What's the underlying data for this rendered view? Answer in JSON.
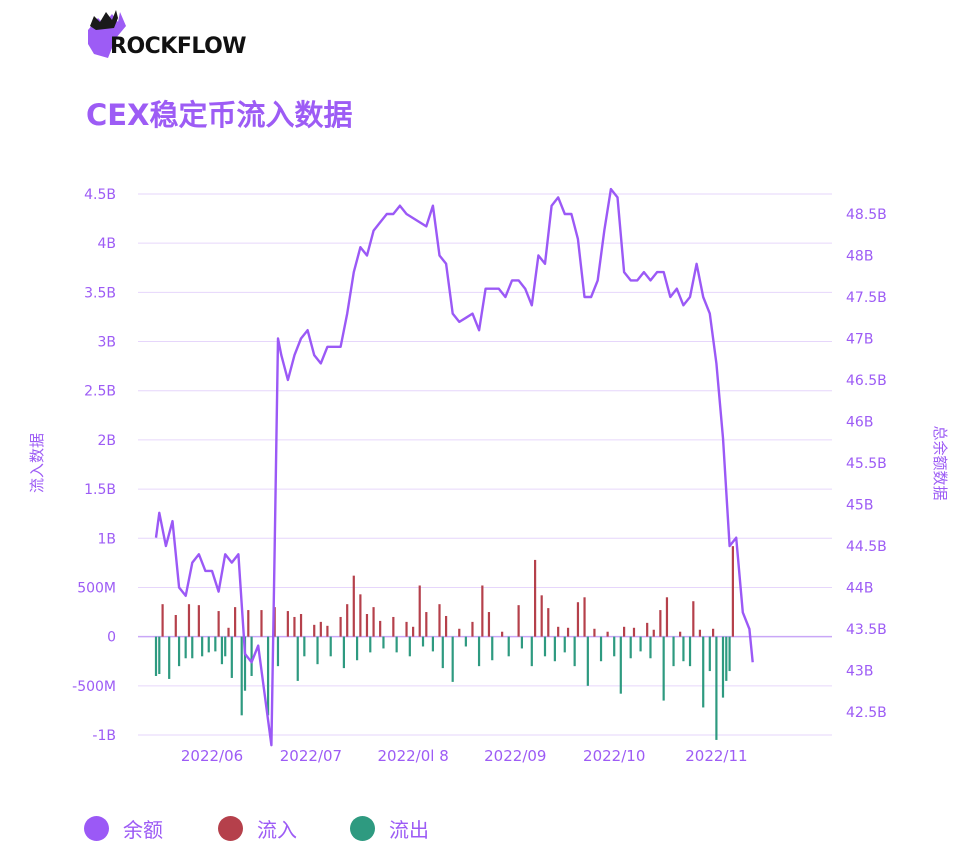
{
  "brand": {
    "name": "ROCKFLOW"
  },
  "title": "CEX稳定币流入数据",
  "legend": [
    {
      "label": "余额",
      "color": "#9b59f6"
    },
    {
      "label": "流入",
      "color": "#b5404b"
    },
    {
      "label": "流出",
      "color": "#2e9a80"
    }
  ],
  "chart_data": {
    "type": "bar+line",
    "title": "CEX稳定币流入数据",
    "ylabel_left": "流入数据",
    "ylabel_right": "总余额数据",
    "y_left": {
      "min": -1000000000,
      "max": 4500000000,
      "ticks": [
        "-1B",
        "-500M",
        "0",
        "500M",
        "1B",
        "1.5B",
        "2B",
        "2.5B",
        "3B",
        "3.5B",
        "4B",
        "4.5B"
      ]
    },
    "y_right": {
      "min": 42000000000,
      "max": 48500000000,
      "ticks": [
        "42.5B",
        "43B",
        "43.5B",
        "44B",
        "44.5B",
        "45B",
        "45.5B",
        "46B",
        "46.5B",
        "47B",
        "47.5B",
        "48B",
        "48.5B"
      ]
    },
    "x_start": "2022-05-15",
    "x_end": "2022-11-30",
    "x_ticks": [
      {
        "date": "2022-06-01",
        "label": "2022/06"
      },
      {
        "date": "2022-07-01",
        "label": "2022/07"
      },
      {
        "date": "2022-08-01",
        "label": "2022/0l 8"
      },
      {
        "date": "2022-09-01",
        "label": "2022/09"
      },
      {
        "date": "2022-10-01",
        "label": "2022/10"
      },
      {
        "date": "2022-11-01",
        "label": "2022/11"
      }
    ],
    "grid": true,
    "series": [
      {
        "name": "余额",
        "type": "line",
        "axis": "right",
        "color": "#9b59f6",
        "points": [
          [
            "2022-05-15",
            44.6
          ],
          [
            "2022-05-16",
            44.9
          ],
          [
            "2022-05-18",
            44.5
          ],
          [
            "2022-05-20",
            44.8
          ],
          [
            "2022-05-22",
            44.0
          ],
          [
            "2022-05-24",
            43.9
          ],
          [
            "2022-05-26",
            44.3
          ],
          [
            "2022-05-28",
            44.4
          ],
          [
            "2022-05-30",
            44.2
          ],
          [
            "2022-06-01",
            44.2
          ],
          [
            "2022-06-03",
            43.95
          ],
          [
            "2022-06-05",
            44.4
          ],
          [
            "2022-06-07",
            44.3
          ],
          [
            "2022-06-09",
            44.4
          ],
          [
            "2022-06-11",
            43.2
          ],
          [
            "2022-06-13",
            43.1
          ],
          [
            "2022-06-15",
            43.3
          ],
          [
            "2022-06-17",
            42.7
          ],
          [
            "2022-06-18",
            42.4
          ],
          [
            "2022-06-19",
            42.1
          ],
          [
            "2022-06-20",
            44.5
          ],
          [
            "2022-06-21",
            47.0
          ],
          [
            "2022-06-22",
            46.8
          ],
          [
            "2022-06-24",
            46.5
          ],
          [
            "2022-06-26",
            46.8
          ],
          [
            "2022-06-28",
            47.0
          ],
          [
            "2022-06-30",
            47.1
          ],
          [
            "2022-07-02",
            46.8
          ],
          [
            "2022-07-04",
            46.7
          ],
          [
            "2022-07-06",
            46.9
          ],
          [
            "2022-07-08",
            46.9
          ],
          [
            "2022-07-10",
            46.9
          ],
          [
            "2022-07-12",
            47.3
          ],
          [
            "2022-07-14",
            47.8
          ],
          [
            "2022-07-16",
            48.1
          ],
          [
            "2022-07-18",
            48.0
          ],
          [
            "2022-07-20",
            48.3
          ],
          [
            "2022-07-22",
            48.4
          ],
          [
            "2022-07-24",
            48.5
          ],
          [
            "2022-07-26",
            48.5
          ],
          [
            "2022-07-28",
            48.6
          ],
          [
            "2022-07-30",
            48.5
          ],
          [
            "2022-08-01",
            48.45
          ],
          [
            "2022-08-03",
            48.4
          ],
          [
            "2022-08-05",
            48.35
          ],
          [
            "2022-08-07",
            48.6
          ],
          [
            "2022-08-09",
            48.0
          ],
          [
            "2022-08-11",
            47.9
          ],
          [
            "2022-08-13",
            47.3
          ],
          [
            "2022-08-15",
            47.2
          ],
          [
            "2022-08-17",
            47.25
          ],
          [
            "2022-08-19",
            47.3
          ],
          [
            "2022-08-21",
            47.1
          ],
          [
            "2022-08-23",
            47.6
          ],
          [
            "2022-08-25",
            47.6
          ],
          [
            "2022-08-27",
            47.6
          ],
          [
            "2022-08-29",
            47.5
          ],
          [
            "2022-08-31",
            47.7
          ],
          [
            "2022-09-02",
            47.7
          ],
          [
            "2022-09-04",
            47.6
          ],
          [
            "2022-09-06",
            47.4
          ],
          [
            "2022-09-08",
            48.0
          ],
          [
            "2022-09-10",
            47.9
          ],
          [
            "2022-09-12",
            48.6
          ],
          [
            "2022-09-14",
            48.7
          ],
          [
            "2022-09-16",
            48.5
          ],
          [
            "2022-09-18",
            48.5
          ],
          [
            "2022-09-20",
            48.2
          ],
          [
            "2022-09-22",
            47.5
          ],
          [
            "2022-09-24",
            47.5
          ],
          [
            "2022-09-26",
            47.7
          ],
          [
            "2022-09-28",
            48.3
          ],
          [
            "2022-09-30",
            48.8
          ],
          [
            "2022-10-02",
            48.7
          ],
          [
            "2022-10-04",
            47.8
          ],
          [
            "2022-10-06",
            47.7
          ],
          [
            "2022-10-08",
            47.7
          ],
          [
            "2022-10-10",
            47.8
          ],
          [
            "2022-10-12",
            47.7
          ],
          [
            "2022-10-14",
            47.8
          ],
          [
            "2022-10-16",
            47.8
          ],
          [
            "2022-10-18",
            47.5
          ],
          [
            "2022-10-20",
            47.6
          ],
          [
            "2022-10-22",
            47.4
          ],
          [
            "2022-10-24",
            47.5
          ],
          [
            "2022-10-26",
            47.9
          ],
          [
            "2022-10-28",
            47.5
          ],
          [
            "2022-10-30",
            47.3
          ],
          [
            "2022-11-01",
            46.7
          ],
          [
            "2022-11-03",
            45.8
          ],
          [
            "2022-11-05",
            44.5
          ],
          [
            "2022-11-07",
            44.6
          ],
          [
            "2022-11-09",
            43.7
          ],
          [
            "2022-11-11",
            43.5
          ],
          [
            "2022-11-12",
            43.1
          ]
        ]
      },
      {
        "name": "流入",
        "type": "bar",
        "axis": "left",
        "color": "#b5404b",
        "points": [
          [
            "2022-05-17",
            0.33
          ],
          [
            "2022-05-21",
            0.22
          ],
          [
            "2022-05-25",
            0.33
          ],
          [
            "2022-05-28",
            0.32
          ],
          [
            "2022-06-03",
            0.26
          ],
          [
            "2022-06-06",
            0.09
          ],
          [
            "2022-06-08",
            0.3
          ],
          [
            "2022-06-12",
            0.27
          ],
          [
            "2022-06-16",
            0.27
          ],
          [
            "2022-06-20",
            0.3
          ],
          [
            "2022-06-24",
            0.26
          ],
          [
            "2022-06-26",
            0.2
          ],
          [
            "2022-06-28",
            0.23
          ],
          [
            "2022-07-02",
            0.12
          ],
          [
            "2022-07-04",
            0.15
          ],
          [
            "2022-07-06",
            0.11
          ],
          [
            "2022-07-10",
            0.2
          ],
          [
            "2022-07-12",
            0.33
          ],
          [
            "2022-07-14",
            0.62
          ],
          [
            "2022-07-16",
            0.43
          ],
          [
            "2022-07-18",
            0.23
          ],
          [
            "2022-07-20",
            0.3
          ],
          [
            "2022-07-22",
            0.16
          ],
          [
            "2022-07-26",
            0.2
          ],
          [
            "2022-07-30",
            0.15
          ],
          [
            "2022-08-01",
            0.1
          ],
          [
            "2022-08-03",
            0.52
          ],
          [
            "2022-08-05",
            0.25
          ],
          [
            "2022-08-09",
            0.33
          ],
          [
            "2022-08-11",
            0.21
          ],
          [
            "2022-08-15",
            0.08
          ],
          [
            "2022-08-19",
            0.15
          ],
          [
            "2022-08-22",
            0.52
          ],
          [
            "2022-08-24",
            0.25
          ],
          [
            "2022-08-28",
            0.05
          ],
          [
            "2022-09-02",
            0.32
          ],
          [
            "2022-09-07",
            0.78
          ],
          [
            "2022-09-09",
            0.42
          ],
          [
            "2022-09-11",
            0.29
          ],
          [
            "2022-09-14",
            0.1
          ],
          [
            "2022-09-17",
            0.09
          ],
          [
            "2022-09-20",
            0.35
          ],
          [
            "2022-09-22",
            0.4
          ],
          [
            "2022-09-25",
            0.08
          ],
          [
            "2022-09-29",
            0.05
          ],
          [
            "2022-10-04",
            0.1
          ],
          [
            "2022-10-07",
            0.09
          ],
          [
            "2022-10-11",
            0.14
          ],
          [
            "2022-10-13",
            0.07
          ],
          [
            "2022-10-15",
            0.27
          ],
          [
            "2022-10-17",
            0.4
          ],
          [
            "2022-10-21",
            0.05
          ],
          [
            "2022-10-25",
            0.36
          ],
          [
            "2022-10-27",
            0.07
          ],
          [
            "2022-10-31",
            0.08
          ],
          [
            "2022-11-06",
            0.92
          ]
        ]
      },
      {
        "name": "流出",
        "type": "bar",
        "axis": "left",
        "color": "#2e9a80",
        "points": [
          [
            "2022-05-15",
            -0.4
          ],
          [
            "2022-05-16",
            -0.38
          ],
          [
            "2022-05-19",
            -0.43
          ],
          [
            "2022-05-22",
            -0.3
          ],
          [
            "2022-05-24",
            -0.22
          ],
          [
            "2022-05-26",
            -0.22
          ],
          [
            "2022-05-29",
            -0.2
          ],
          [
            "2022-05-31",
            -0.16
          ],
          [
            "2022-06-02",
            -0.15
          ],
          [
            "2022-06-04",
            -0.28
          ],
          [
            "2022-06-05",
            -0.2
          ],
          [
            "2022-06-07",
            -0.42
          ],
          [
            "2022-06-10",
            -0.8
          ],
          [
            "2022-06-11",
            -0.55
          ],
          [
            "2022-06-13",
            -0.4
          ],
          [
            "2022-06-18",
            -0.8
          ],
          [
            "2022-06-21",
            -0.3
          ],
          [
            "2022-06-27",
            -0.45
          ],
          [
            "2022-06-29",
            -0.2
          ],
          [
            "2022-07-03",
            -0.28
          ],
          [
            "2022-07-07",
            -0.2
          ],
          [
            "2022-07-11",
            -0.32
          ],
          [
            "2022-07-15",
            -0.24
          ],
          [
            "2022-07-19",
            -0.16
          ],
          [
            "2022-07-23",
            -0.12
          ],
          [
            "2022-07-27",
            -0.16
          ],
          [
            "2022-07-31",
            -0.2
          ],
          [
            "2022-08-04",
            -0.1
          ],
          [
            "2022-08-07",
            -0.15
          ],
          [
            "2022-08-10",
            -0.32
          ],
          [
            "2022-08-13",
            -0.46
          ],
          [
            "2022-08-17",
            -0.1
          ],
          [
            "2022-08-21",
            -0.3
          ],
          [
            "2022-08-25",
            -0.24
          ],
          [
            "2022-08-30",
            -0.2
          ],
          [
            "2022-09-03",
            -0.12
          ],
          [
            "2022-09-06",
            -0.3
          ],
          [
            "2022-09-10",
            -0.2
          ],
          [
            "2022-09-13",
            -0.25
          ],
          [
            "2022-09-16",
            -0.16
          ],
          [
            "2022-09-19",
            -0.3
          ],
          [
            "2022-09-23",
            -0.5
          ],
          [
            "2022-09-27",
            -0.25
          ],
          [
            "2022-10-01",
            -0.2
          ],
          [
            "2022-10-03",
            -0.58
          ],
          [
            "2022-10-06",
            -0.22
          ],
          [
            "2022-10-09",
            -0.15
          ],
          [
            "2022-10-12",
            -0.22
          ],
          [
            "2022-10-16",
            -0.65
          ],
          [
            "2022-10-19",
            -0.3
          ],
          [
            "2022-10-22",
            -0.25
          ],
          [
            "2022-10-24",
            -0.3
          ],
          [
            "2022-10-28",
            -0.72
          ],
          [
            "2022-10-30",
            -0.35
          ],
          [
            "2022-11-01",
            -1.05
          ],
          [
            "2022-11-03",
            -0.62
          ],
          [
            "2022-11-04",
            -0.45
          ],
          [
            "2022-11-05",
            -0.35
          ]
        ]
      }
    ]
  }
}
